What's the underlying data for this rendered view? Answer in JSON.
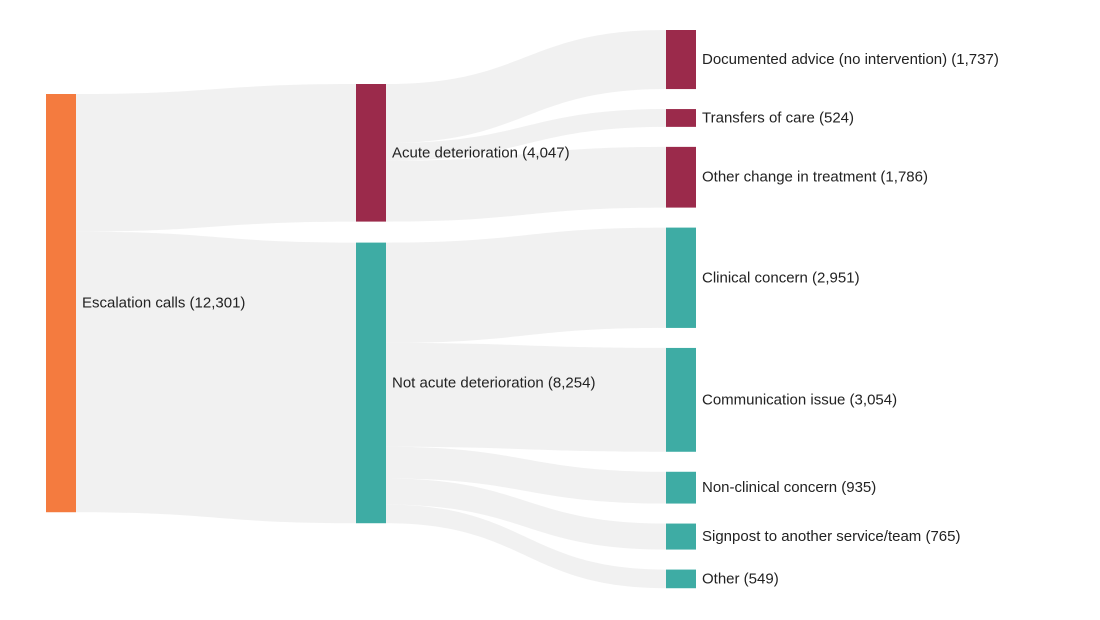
{
  "colors": {
    "source": "#f47b3f",
    "acute": "#9b2a4b",
    "not_acute": "#3eaca4",
    "link": "#efefef"
  },
  "nodes": [
    {
      "id": "escalation",
      "label": "Escalation calls (12,301)",
      "value": 12301,
      "column": 0,
      "color": "source"
    },
    {
      "id": "acute",
      "label": "Acute deterioration (4,047)",
      "value": 4047,
      "column": 1,
      "color": "acute"
    },
    {
      "id": "not_acute",
      "label": "Not acute deterioration (8,254)",
      "value": 8254,
      "column": 1,
      "color": "not_acute"
    },
    {
      "id": "documented",
      "label": "Documented advice (no intervention) (1,737)",
      "value": 1737,
      "column": 2,
      "color": "acute"
    },
    {
      "id": "transfers",
      "label": "Transfers of care (524)",
      "value": 524,
      "column": 2,
      "color": "acute"
    },
    {
      "id": "other_change",
      "label": "Other change in treatment (1,786)",
      "value": 1786,
      "column": 2,
      "color": "acute"
    },
    {
      "id": "clinical",
      "label": "Clinical concern (2,951)",
      "value": 2951,
      "column": 2,
      "color": "not_acute"
    },
    {
      "id": "communication",
      "label": "Communication issue (3,054)",
      "value": 3054,
      "column": 2,
      "color": "not_acute"
    },
    {
      "id": "nonclinical",
      "label": "Non-clinical concern (935)",
      "value": 935,
      "column": 2,
      "color": "not_acute"
    },
    {
      "id": "signpost",
      "label": "Signpost to another service/team (765)",
      "value": 765,
      "column": 2,
      "color": "not_acute"
    },
    {
      "id": "other",
      "label": "Other (549)",
      "value": 549,
      "column": 2,
      "color": "not_acute"
    }
  ],
  "links": [
    {
      "source": "escalation",
      "target": "acute",
      "value": 4047
    },
    {
      "source": "escalation",
      "target": "not_acute",
      "value": 8254
    },
    {
      "source": "acute",
      "target": "documented",
      "value": 1737
    },
    {
      "source": "acute",
      "target": "transfers",
      "value": 524
    },
    {
      "source": "acute",
      "target": "other_change",
      "value": 1786
    },
    {
      "source": "not_acute",
      "target": "clinical",
      "value": 2951
    },
    {
      "source": "not_acute",
      "target": "communication",
      "value": 3054
    },
    {
      "source": "not_acute",
      "target": "nonclinical",
      "value": 935
    },
    {
      "source": "not_acute",
      "target": "signpost",
      "value": 765
    },
    {
      "source": "not_acute",
      "target": "other",
      "value": 549
    }
  ]
}
